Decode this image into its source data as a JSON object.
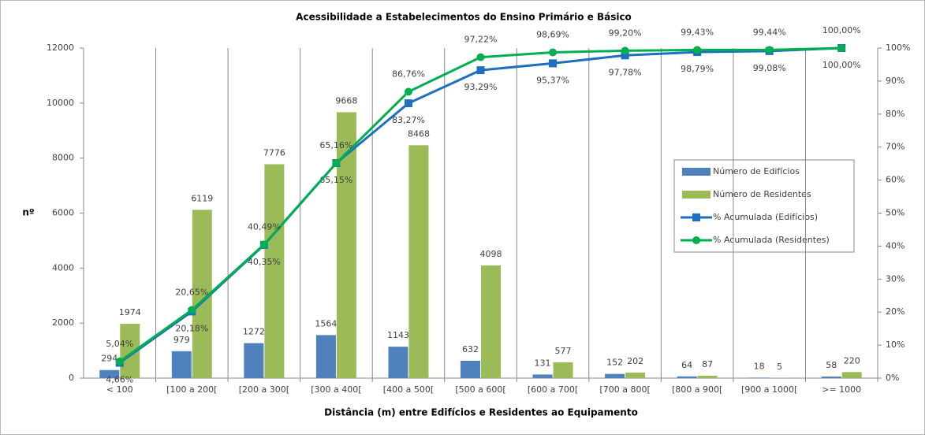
{
  "chart_data": {
    "type": "bar",
    "title": "Acessibilidade a Estabelecimentos do Ensino Primário e Básico",
    "x_label": "Distância (m) entre Edifícios e Residentes ao Equipamento",
    "y_label": "nº",
    "categories": [
      "< 100",
      "[100 a 200[",
      "[200 a 300[",
      "[300 a 400[",
      "[400 a 500[",
      "[500 a 600[",
      "[600 a 700[",
      "[700 a 800[",
      "[800 a 900[",
      "[900 a 1000[",
      ">= 1000"
    ],
    "series": [
      {
        "name": "Número de Edifícios",
        "type": "bar",
        "color": "#4f81bd",
        "values": [
          294,
          979,
          1272,
          1564,
          1143,
          632,
          131,
          152,
          64,
          18,
          58
        ]
      },
      {
        "name": "Número de Residentes",
        "type": "bar",
        "color": "#9bbb59",
        "values": [
          1974,
          6119,
          7776,
          9668,
          8468,
          4098,
          577,
          202,
          87,
          5,
          220
        ]
      },
      {
        "name": "% Acumulada (Edifícios)",
        "type": "line",
        "marker": "square",
        "axis": "y2",
        "color": "#1f6fc0",
        "values": [
          4.66,
          20.18,
          40.35,
          65.15,
          83.27,
          93.29,
          95.37,
          97.78,
          98.79,
          99.08,
          100
        ],
        "value_labels": [
          "4,66%",
          "20,18%",
          "40,35%",
          "65,15%",
          "83,27%",
          "93,29%",
          "95,37%",
          "97,78%",
          "98,79%",
          "99,08%",
          "100,00%"
        ]
      },
      {
        "name": "% Acumulada (Residentes)",
        "type": "line",
        "marker": "circle",
        "axis": "y2",
        "color": "#00b050",
        "values": [
          5.04,
          20.65,
          40.49,
          65.16,
          86.76,
          97.22,
          98.69,
          99.2,
          99.43,
          99.44,
          100
        ],
        "value_labels": [
          "5,04%",
          "20,65%",
          "40,49%",
          "65,16%",
          "86,76%",
          "97,22%",
          "98,69%",
          "99,20%",
          "99,43%",
          "99,44%",
          "100,00%"
        ]
      }
    ],
    "ylim": [
      0,
      12000
    ],
    "yticks": [
      0,
      2000,
      4000,
      6000,
      8000,
      10000,
      12000
    ],
    "y2lim": [
      0,
      100
    ],
    "y2ticks": [
      {
        "value": 0,
        "label": "0%"
      },
      {
        "value": 10,
        "label": "10%"
      },
      {
        "value": 20,
        "label": "20%"
      },
      {
        "value": 30,
        "label": "30%"
      },
      {
        "value": 40,
        "label": "40%"
      },
      {
        "value": 50,
        "label": "50%"
      },
      {
        "value": 60,
        "label": "60%"
      },
      {
        "value": 70,
        "label": "70%"
      },
      {
        "value": 80,
        "label": "80%"
      },
      {
        "value": 90,
        "label": "90%"
      },
      {
        "value": 100,
        "label": "100%"
      }
    ],
    "grid": "vertical",
    "legend": "right"
  }
}
